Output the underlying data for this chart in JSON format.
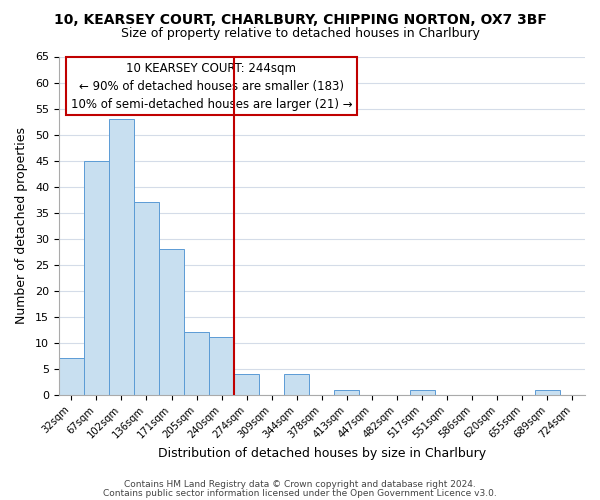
{
  "title": "10, KEARSEY COURT, CHARLBURY, CHIPPING NORTON, OX7 3BF",
  "subtitle": "Size of property relative to detached houses in Charlbury",
  "xlabel": "Distribution of detached houses by size in Charlbury",
  "ylabel": "Number of detached properties",
  "bar_labels": [
    "32sqm",
    "67sqm",
    "102sqm",
    "136sqm",
    "171sqm",
    "205sqm",
    "240sqm",
    "274sqm",
    "309sqm",
    "344sqm",
    "378sqm",
    "413sqm",
    "447sqm",
    "482sqm",
    "517sqm",
    "551sqm",
    "586sqm",
    "620sqm",
    "655sqm",
    "689sqm",
    "724sqm"
  ],
  "bar_values": [
    7,
    45,
    53,
    37,
    28,
    12,
    11,
    4,
    0,
    4,
    0,
    1,
    0,
    0,
    1,
    0,
    0,
    0,
    0,
    1,
    0
  ],
  "bar_color": "#c8dff0",
  "bar_edge_color": "#5b9bd5",
  "vline_bar_index": 6,
  "vline_color": "#c00000",
  "ylim": [
    0,
    65
  ],
  "yticks": [
    0,
    5,
    10,
    15,
    20,
    25,
    30,
    35,
    40,
    45,
    50,
    55,
    60,
    65
  ],
  "ann_line1": "10 KEARSEY COURT: 244sqm",
  "ann_line2": "← 90% of detached houses are smaller (183)",
  "ann_line3": "10% of semi-detached houses are larger (21) →",
  "box_edge_color": "#c00000",
  "footer1": "Contains HM Land Registry data © Crown copyright and database right 2024.",
  "footer2": "Contains public sector information licensed under the Open Government Licence v3.0.",
  "background_color": "#ffffff",
  "grid_color": "#d4dce8"
}
